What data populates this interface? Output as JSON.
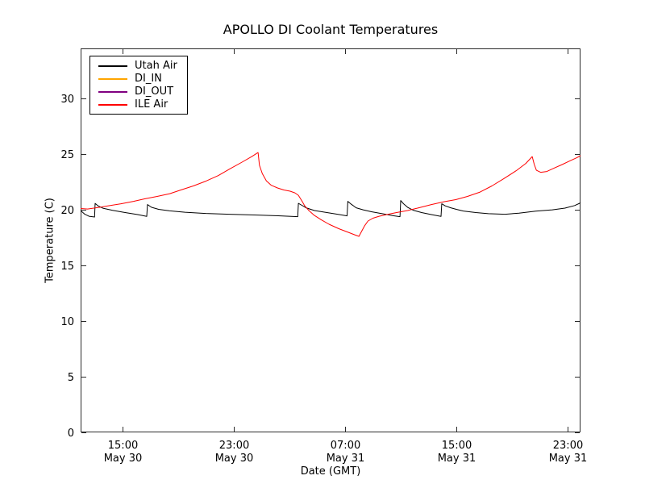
{
  "chart_data": {
    "type": "line",
    "title": "APOLLO DI Coolant Temperatures",
    "xlabel": "Date (GMT)",
    "ylabel": "Temperature (C)",
    "grid": false,
    "legend_position": "upper left",
    "ylim": [
      0,
      34.5
    ],
    "yticks": [
      0,
      5,
      10,
      15,
      20,
      25,
      30
    ],
    "xlim": [
      0,
      35.92
    ],
    "xticks": [
      {
        "pos": 3,
        "time": "15:00",
        "date": "May 30"
      },
      {
        "pos": 11,
        "time": "23:00",
        "date": "May 30"
      },
      {
        "pos": 19,
        "time": "07:00",
        "date": "May 31"
      },
      {
        "pos": 27,
        "time": "15:00",
        "date": "May 31"
      },
      {
        "pos": 35,
        "time": "23:00",
        "date": "May 31"
      }
    ],
    "x_unit_note": "hours after first visible sample (May 30 ~12:00 GMT)",
    "series": [
      {
        "name": "Utah Air",
        "color": "#000000",
        "points": [
          [
            0,
            19.93
          ],
          [
            0.3,
            19.6
          ],
          [
            0.6,
            19.42
          ],
          [
            1.0,
            19.35
          ],
          [
            1.04,
            20.58
          ],
          [
            1.25,
            20.35
          ],
          [
            1.6,
            20.14
          ],
          [
            2.3,
            19.95
          ],
          [
            3.2,
            19.75
          ],
          [
            4.1,
            19.57
          ],
          [
            4.75,
            19.4
          ],
          [
            4.8,
            20.47
          ],
          [
            5.1,
            20.22
          ],
          [
            5.6,
            20.04
          ],
          [
            6.4,
            19.9
          ],
          [
            7.5,
            19.78
          ],
          [
            9.0,
            19.67
          ],
          [
            10.7,
            19.6
          ],
          [
            12.5,
            19.53
          ],
          [
            14.2,
            19.46
          ],
          [
            15.6,
            19.38
          ],
          [
            15.65,
            20.58
          ],
          [
            15.9,
            20.4
          ],
          [
            16.2,
            20.18
          ],
          [
            16.8,
            19.93
          ],
          [
            17.7,
            19.75
          ],
          [
            18.6,
            19.57
          ],
          [
            19.15,
            19.45
          ],
          [
            19.2,
            20.76
          ],
          [
            19.45,
            20.5
          ],
          [
            19.8,
            20.18
          ],
          [
            20.3,
            20.0
          ],
          [
            20.9,
            19.82
          ],
          [
            21.7,
            19.64
          ],
          [
            22.5,
            19.46
          ],
          [
            22.95,
            19.38
          ],
          [
            23.0,
            20.83
          ],
          [
            23.2,
            20.55
          ],
          [
            23.5,
            20.22
          ],
          [
            23.9,
            19.96
          ],
          [
            24.5,
            19.75
          ],
          [
            25.2,
            19.57
          ],
          [
            25.9,
            19.4
          ],
          [
            25.95,
            20.54
          ],
          [
            26.2,
            20.35
          ],
          [
            26.6,
            20.18
          ],
          [
            27.0,
            20.04
          ],
          [
            27.5,
            19.89
          ],
          [
            28.4,
            19.75
          ],
          [
            29.3,
            19.65
          ],
          [
            30.5,
            19.6
          ],
          [
            31.5,
            19.7
          ],
          [
            32.7,
            19.88
          ],
          [
            33.9,
            20.0
          ],
          [
            34.8,
            20.15
          ],
          [
            35.5,
            20.38
          ],
          [
            35.92,
            20.62
          ]
        ]
      },
      {
        "name": "DI_IN",
        "color": "#ffa500",
        "points": []
      },
      {
        "name": "DI_OUT",
        "color": "#800080",
        "points": []
      },
      {
        "name": "ILE Air",
        "color": "#ff0000",
        "points": [
          [
            0,
            20.11
          ],
          [
            0.5,
            20.07
          ],
          [
            0.9,
            20.14
          ],
          [
            1.5,
            20.25
          ],
          [
            2.0,
            20.36
          ],
          [
            2.9,
            20.54
          ],
          [
            3.8,
            20.76
          ],
          [
            4.6,
            20.98
          ],
          [
            5.5,
            21.2
          ],
          [
            6.4,
            21.45
          ],
          [
            7.2,
            21.78
          ],
          [
            8.1,
            22.14
          ],
          [
            9.0,
            22.57
          ],
          [
            9.9,
            23.08
          ],
          [
            10.7,
            23.66
          ],
          [
            11.6,
            24.28
          ],
          [
            12.3,
            24.78
          ],
          [
            12.75,
            25.14
          ],
          [
            12.85,
            24.0
          ],
          [
            13.05,
            23.26
          ],
          [
            13.35,
            22.6
          ],
          [
            13.7,
            22.2
          ],
          [
            14.15,
            21.96
          ],
          [
            14.6,
            21.78
          ],
          [
            15.05,
            21.67
          ],
          [
            15.4,
            21.52
          ],
          [
            15.65,
            21.3
          ],
          [
            15.9,
            20.8
          ],
          [
            16.1,
            20.36
          ],
          [
            16.4,
            19.93
          ],
          [
            16.8,
            19.49
          ],
          [
            17.3,
            19.09
          ],
          [
            17.85,
            18.7
          ],
          [
            18.55,
            18.3
          ],
          [
            19.25,
            17.97
          ],
          [
            19.7,
            17.75
          ],
          [
            20.0,
            17.61
          ],
          [
            20.15,
            17.97
          ],
          [
            20.4,
            18.55
          ],
          [
            20.65,
            18.99
          ],
          [
            21.0,
            19.24
          ],
          [
            21.45,
            19.42
          ],
          [
            22.0,
            19.57
          ],
          [
            22.7,
            19.75
          ],
          [
            23.5,
            19.93
          ],
          [
            24.3,
            20.18
          ],
          [
            25.2,
            20.47
          ],
          [
            26.1,
            20.72
          ],
          [
            26.95,
            20.91
          ],
          [
            27.8,
            21.2
          ],
          [
            28.7,
            21.59
          ],
          [
            29.55,
            22.14
          ],
          [
            30.4,
            22.79
          ],
          [
            31.3,
            23.51
          ],
          [
            32.0,
            24.17
          ],
          [
            32.45,
            24.78
          ],
          [
            32.6,
            24.06
          ],
          [
            32.75,
            23.55
          ],
          [
            33.05,
            23.37
          ],
          [
            33.5,
            23.44
          ],
          [
            34.0,
            23.73
          ],
          [
            34.6,
            24.06
          ],
          [
            35.2,
            24.42
          ],
          [
            35.65,
            24.67
          ],
          [
            35.92,
            24.86
          ]
        ]
      }
    ]
  }
}
